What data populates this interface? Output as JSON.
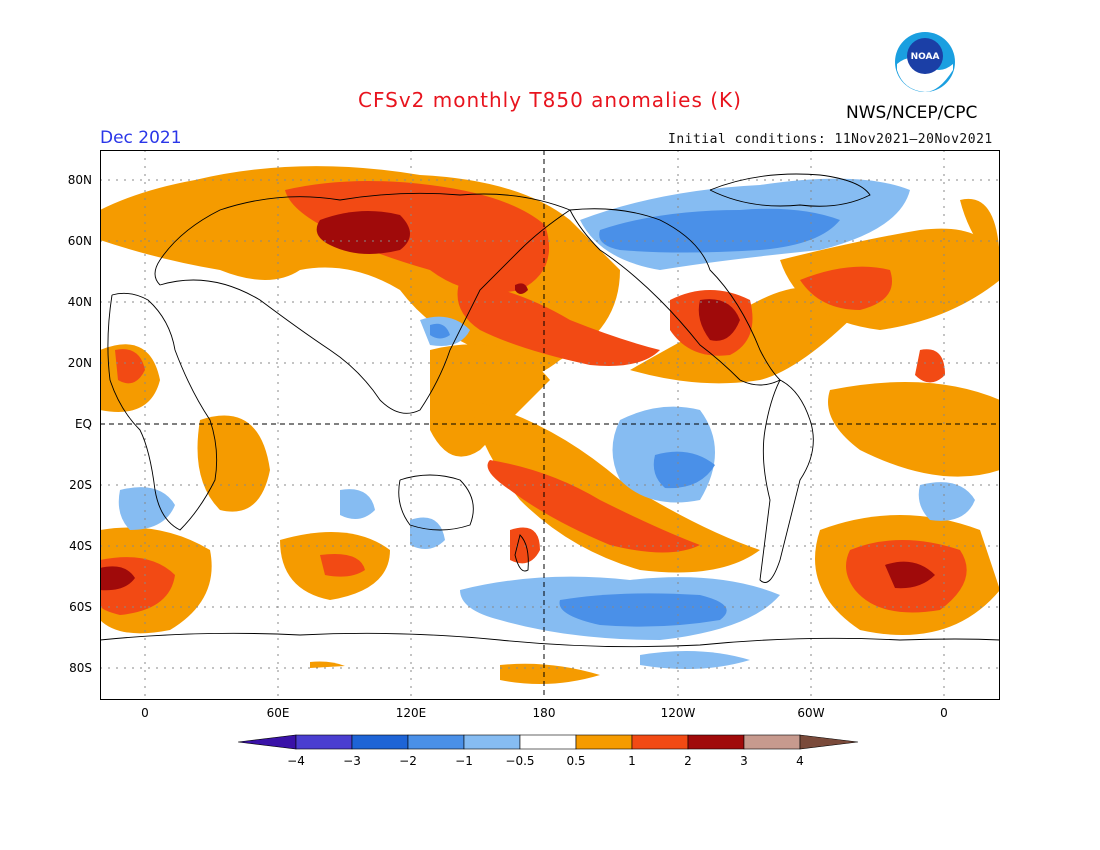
{
  "title": "CFSv2 monthly T850 anomalies (K)",
  "agency": "NWS/NCEP/CPC",
  "logo_text": "NOAA",
  "period": "Dec 2021",
  "initial_conditions": "Initial conditions: 11Nov2021–20Nov2021",
  "lat_labels": [
    "80N",
    "60N",
    "40N",
    "20N",
    "EQ",
    "20S",
    "40S",
    "60S",
    "80S"
  ],
  "lon_labels": [
    "0",
    "60E",
    "120E",
    "180",
    "120W",
    "60W",
    "0"
  ],
  "colorbar": {
    "levels": [
      "−4",
      "−3",
      "−2",
      "−1",
      "−0.5",
      "0.5",
      "1",
      "2",
      "3",
      "4"
    ],
    "colors": [
      "#3a12a8",
      "#4a3ed0",
      "#1e64d6",
      "#4a90e8",
      "#86bcf2",
      "#ffffff",
      "#f59b00",
      "#f24a14",
      "#a00a0a",
      "#c79a8e",
      "#7a4a3a"
    ]
  }
}
